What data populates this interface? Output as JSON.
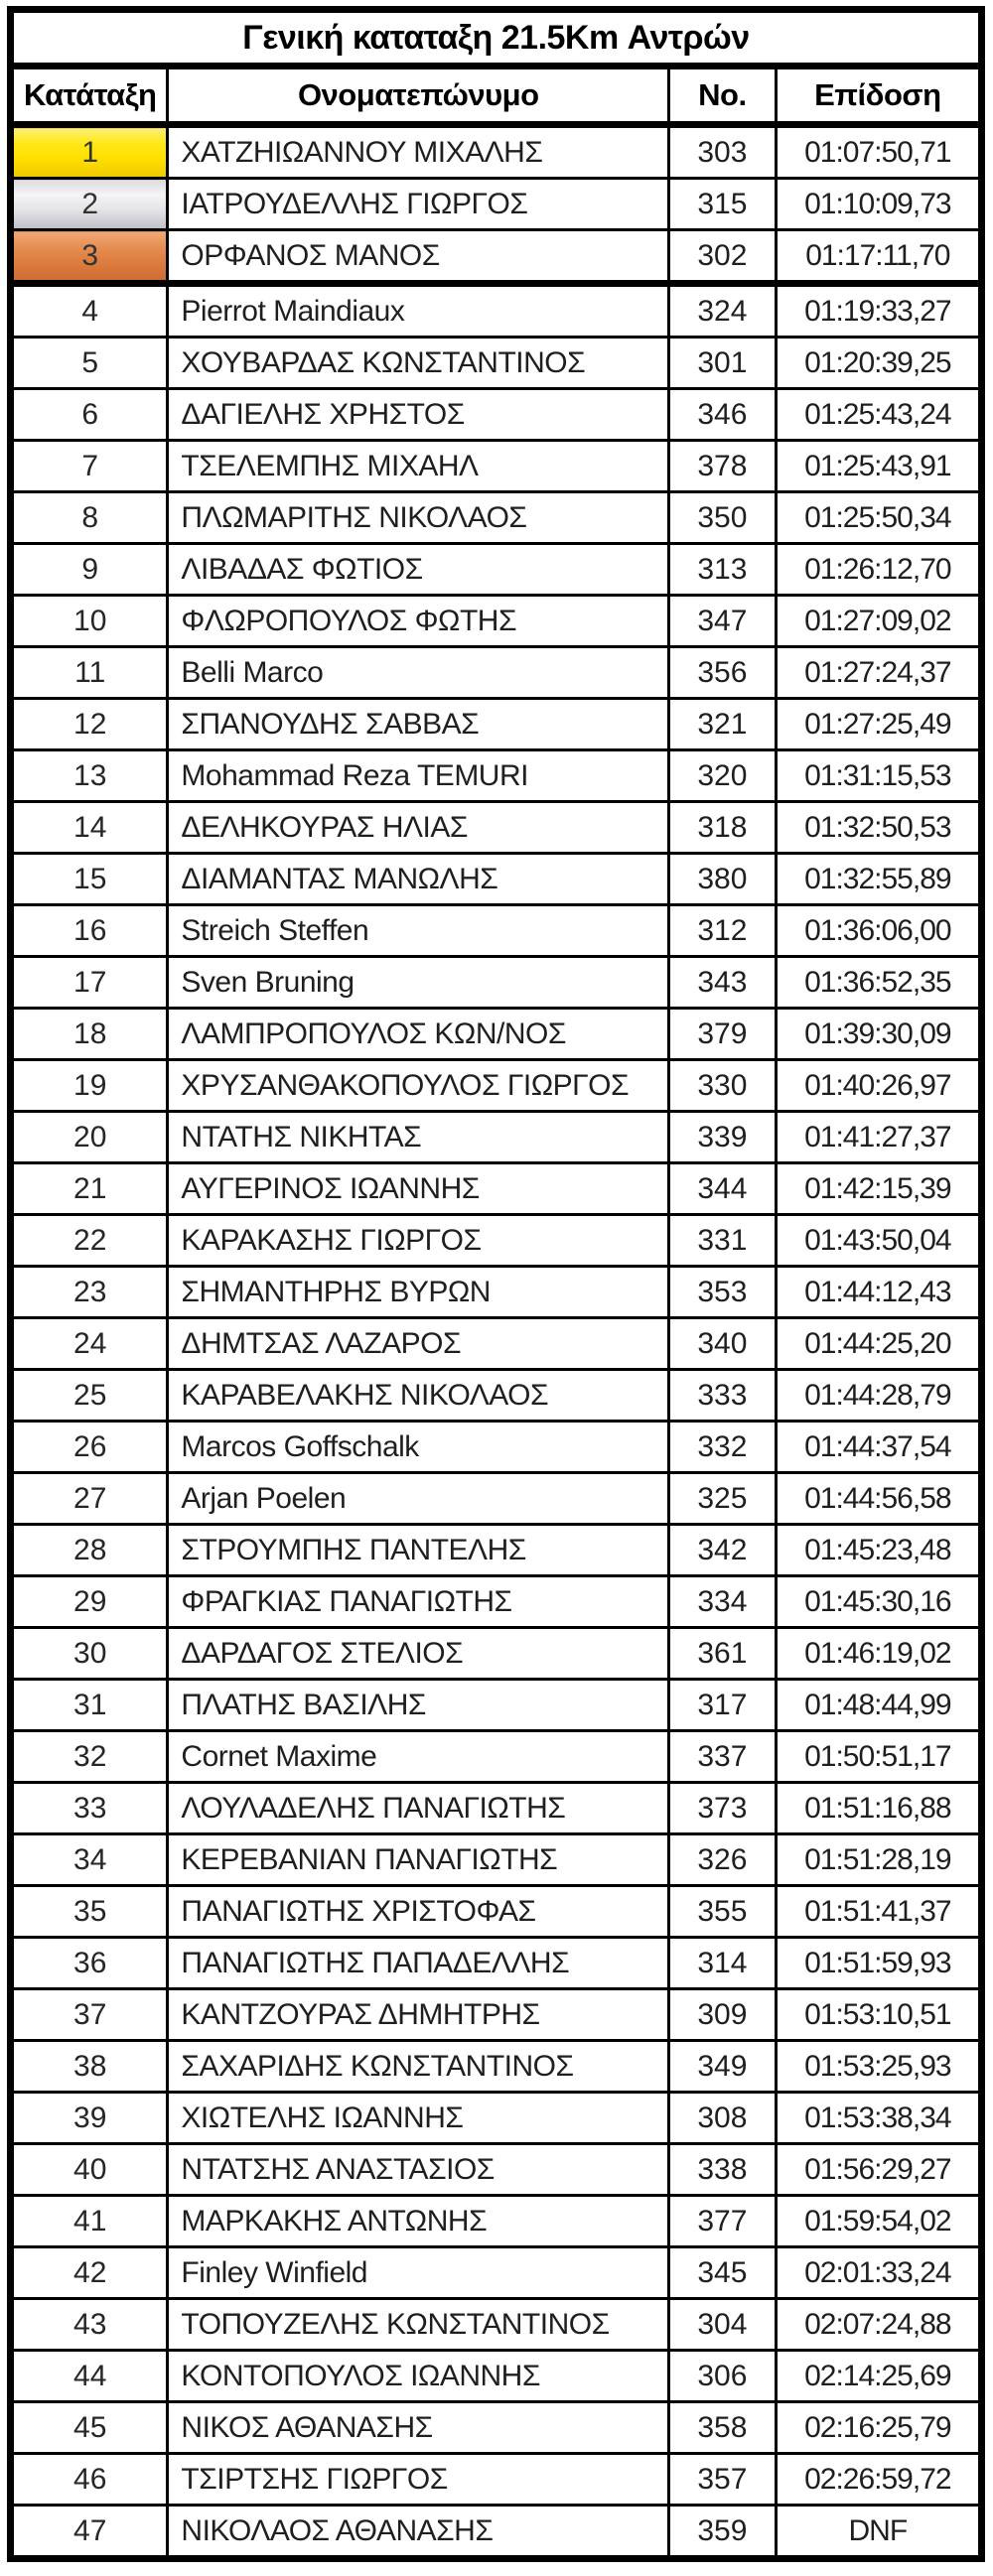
{
  "title": "Γενική καταταξη 21.5Km Αντρών",
  "columns": [
    "Κατάταξη",
    "Ονοματεπώνυμο",
    "No.",
    "Επίδοση"
  ],
  "medal_colors": {
    "gold": [
      "#faf077",
      "#ffe818",
      "#ffdf00",
      "#efc900"
    ],
    "silver": [
      "#dcdcde",
      "#f4f4f6",
      "#e3e3e7",
      "#bfbfc7"
    ],
    "bronze": [
      "#f2a877",
      "#e68f55",
      "#dd7d3f",
      "#d06c31"
    ]
  },
  "border_color": "#000000",
  "rows": [
    {
      "rank": "1",
      "name": "ΧΑΤΖΗΙΩΑΝΝΟΥ ΜΙΧΑΛΗΣ",
      "no": "303",
      "time": "01:07:50,71",
      "medal": "gold"
    },
    {
      "rank": "2",
      "name": "ΙΑΤΡΟΥΔΕΛΛΗΣ ΓΙΩΡΓΟΣ",
      "no": "315",
      "time": "01:10:09,73",
      "medal": "silver"
    },
    {
      "rank": "3",
      "name": "ΟΡΦΑΝΟΣ ΜΑΝΟΣ",
      "no": "302",
      "time": "01:17:11,70",
      "medal": "bronze"
    },
    {
      "rank": "4",
      "name": "Pierrot Maindiaux",
      "no": "324",
      "time": "01:19:33,27"
    },
    {
      "rank": "5",
      "name": "ΧΟΥΒΑΡΔΑΣ ΚΩΝΣΤΑΝΤΙΝΟΣ",
      "no": "301",
      "time": "01:20:39,25"
    },
    {
      "rank": "6",
      "name": "ΔΑΓΙΕΛΗΣ ΧΡΗΣΤΟΣ",
      "no": "346",
      "time": "01:25:43,24"
    },
    {
      "rank": "7",
      "name": "ΤΣΕΛΕΜΠΗΣ ΜΙΧΑΗΛ",
      "no": "378",
      "time": "01:25:43,91"
    },
    {
      "rank": "8",
      "name": "ΠΛΩΜΑΡΙΤΗΣ ΝΙΚΟΛΑΟΣ",
      "no": "350",
      "time": "01:25:50,34"
    },
    {
      "rank": "9",
      "name": "ΛΙΒΑΔΑΣ ΦΩΤΙΟΣ",
      "no": "313",
      "time": "01:26:12,70"
    },
    {
      "rank": "10",
      "name": "ΦΛΩΡΟΠΟΥΛΟΣ ΦΩΤΗΣ",
      "no": "347",
      "time": "01:27:09,02"
    },
    {
      "rank": "11",
      "name": "Belli Marco",
      "no": "356",
      "time": "01:27:24,37"
    },
    {
      "rank": "12",
      "name": "ΣΠΑΝΟΥΔΗΣ ΣΑΒΒΑΣ",
      "no": "321",
      "time": "01:27:25,49"
    },
    {
      "rank": "13",
      "name": "Mohammad Reza TEMURI",
      "no": "320",
      "time": "01:31:15,53"
    },
    {
      "rank": "14",
      "name": "ΔΕΛΗΚΟΥΡΑΣ ΗΛΙΑΣ",
      "no": "318",
      "time": "01:32:50,53"
    },
    {
      "rank": "15",
      "name": "ΔΙΑΜΑΝΤΑΣ ΜΑΝΩΛΗΣ",
      "no": "380",
      "time": "01:32:55,89"
    },
    {
      "rank": "16",
      "name": "Streich Steffen",
      "no": "312",
      "time": "01:36:06,00"
    },
    {
      "rank": "17",
      "name": "Sven Bruning",
      "no": "343",
      "time": "01:36:52,35"
    },
    {
      "rank": "18",
      "name": "ΛΑΜΠΡΟΠΟΥΛΟΣ ΚΩΝ/ΝΟΣ",
      "no": "379",
      "time": "01:39:30,09"
    },
    {
      "rank": "19",
      "name": "ΧΡΥΣΑΝΘΑΚΟΠΟΥΛΟΣ ΓΙΩΡΓΟΣ",
      "no": "330",
      "time": "01:40:26,97"
    },
    {
      "rank": "20",
      "name": "ΝΤΑΤΗΣ ΝΙΚΗΤΑΣ",
      "no": "339",
      "time": "01:41:27,37"
    },
    {
      "rank": "21",
      "name": "ΑΥΓΕΡΙΝΟΣ ΙΩΑΝΝΗΣ",
      "no": "344",
      "time": "01:42:15,39"
    },
    {
      "rank": "22",
      "name": "ΚΑΡΑΚΑΣΗΣ ΓΙΩΡΓΟΣ",
      "no": "331",
      "time": "01:43:50,04"
    },
    {
      "rank": "23",
      "name": "ΣΗΜΑΝΤΗΡΗΣ ΒΥΡΩΝ",
      "no": "353",
      "time": "01:44:12,43"
    },
    {
      "rank": "24",
      "name": "ΔΗΜΤΣΑΣ ΛΑΖΑΡΟΣ",
      "no": "340",
      "time": "01:44:25,20"
    },
    {
      "rank": "25",
      "name": "ΚΑΡΑΒΕΛΑΚΗΣ ΝΙΚΟΛΑΟΣ",
      "no": "333",
      "time": "01:44:28,79"
    },
    {
      "rank": "26",
      "name": "Marcos Goffschalk",
      "no": "332",
      "time": "01:44:37,54"
    },
    {
      "rank": "27",
      "name": "Arjan Poelen",
      "no": "325",
      "time": "01:44:56,58"
    },
    {
      "rank": "28",
      "name": "ΣΤΡΟΥΜΠΗΣ ΠΑΝΤΕΛΗΣ",
      "no": "342",
      "time": "01:45:23,48"
    },
    {
      "rank": "29",
      "name": "ΦΡΑΓΚΙΑΣ ΠΑΝΑΓΙΩΤΗΣ",
      "no": "334",
      "time": "01:45:30,16"
    },
    {
      "rank": "30",
      "name": "ΔΑΡΔΑΓΟΣ ΣΤΕΛΙΟΣ",
      "no": "361",
      "time": "01:46:19,02"
    },
    {
      "rank": "31",
      "name": "ΠΛΑΤΗΣ ΒΑΣΙΛΗΣ",
      "no": "317",
      "time": "01:48:44,99"
    },
    {
      "rank": "32",
      "name": "Cornet Maxime",
      "no": "337",
      "time": "01:50:51,17"
    },
    {
      "rank": "33",
      "name": "ΛΟΥΛΑΔΕΛΗΣ ΠΑΝΑΓΙΩΤΗΣ",
      "no": "373",
      "time": "01:51:16,88"
    },
    {
      "rank": "34",
      "name": "ΚΕΡΕΒΑΝΙΑΝ ΠΑΝΑΓΙΩΤΗΣ",
      "no": "326",
      "time": "01:51:28,19"
    },
    {
      "rank": "35",
      "name": "ΠΑΝΑΓΙΩΤΗΣ ΧΡΙΣΤΟΦΑΣ",
      "no": "355",
      "time": "01:51:41,37"
    },
    {
      "rank": "36",
      "name": "ΠΑΝΑΓΙΩΤΗΣ ΠΑΠΑΔΕΛΛΗΣ",
      "no": "314",
      "time": "01:51:59,93"
    },
    {
      "rank": "37",
      "name": "ΚΑΝΤΖΟΥΡΑΣ ΔΗΜΗΤΡΗΣ",
      "no": "309",
      "time": "01:53:10,51"
    },
    {
      "rank": "38",
      "name": "ΣΑΧΑΡΙΔΗΣ ΚΩΝΣΤΑΝΤΙΝΟΣ",
      "no": "349",
      "time": "01:53:25,93"
    },
    {
      "rank": "39",
      "name": "ΧΙΩΤΕΛΗΣ ΙΩΑΝΝΗΣ",
      "no": "308",
      "time": "01:53:38,34"
    },
    {
      "rank": "40",
      "name": "ΝΤΑΤΣΗΣ ΑΝΑΣΤΑΣΙΟΣ",
      "no": "338",
      "time": "01:56:29,27"
    },
    {
      "rank": "41",
      "name": "ΜΑΡΚΑΚΗΣ ΑΝΤΩΝΗΣ",
      "no": "377",
      "time": "01:59:54,02"
    },
    {
      "rank": "42",
      "name": "Finley Winfield",
      "no": "345",
      "time": "02:01:33,24"
    },
    {
      "rank": "43",
      "name": "ΤΟΠΟΥΖΕΛΗΣ ΚΩΝΣΤΑΝΤΙΝΟΣ",
      "no": "304",
      "time": "02:07:24,88"
    },
    {
      "rank": "44",
      "name": "ΚΟΝΤΟΠΟΥΛΟΣ ΙΩΑΝΝΗΣ",
      "no": "306",
      "time": "02:14:25,69"
    },
    {
      "rank": "45",
      "name": "ΝΙΚΟΣ ΑΘΑΝΑΣΗΣ",
      "no": "358",
      "time": "02:16:25,79"
    },
    {
      "rank": "46",
      "name": "ΤΣΙΡΤΣΗΣ ΓΙΩΡΓΟΣ",
      "no": "357",
      "time": "02:26:59,72"
    },
    {
      "rank": "47",
      "name": "ΝΙΚΟΛΑΟΣ ΑΘΑΝΑΣΗΣ",
      "no": "359",
      "time": "DNF"
    }
  ]
}
